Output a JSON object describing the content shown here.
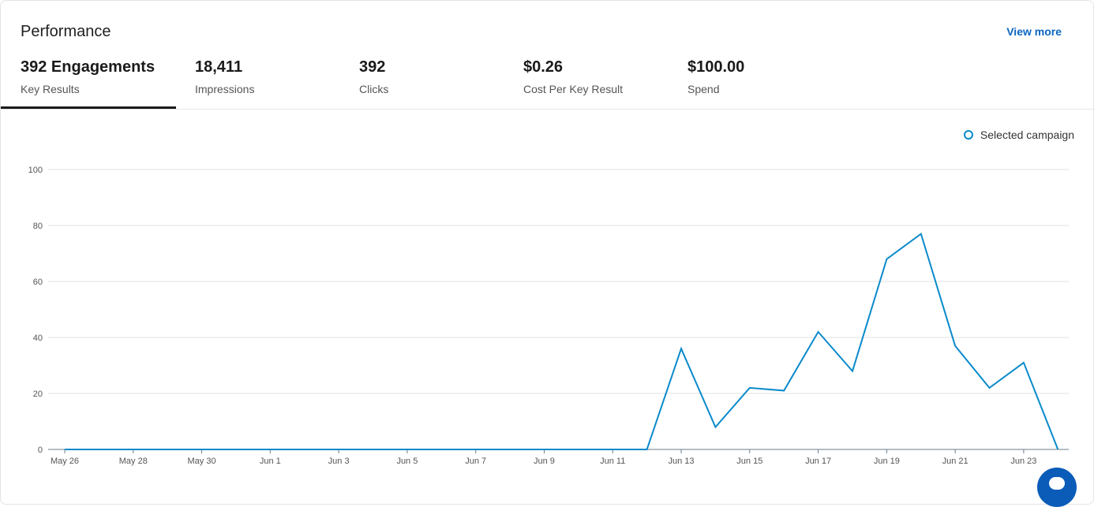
{
  "header": {
    "title": "Performance",
    "view_more": "View more"
  },
  "metrics": [
    {
      "value": "392 Engagements",
      "label": "Key Results",
      "active": true
    },
    {
      "value": "18,411",
      "label": "Impressions"
    },
    {
      "value": "392",
      "label": "Clicks"
    },
    {
      "value": "$0.26",
      "label": "Cost Per Key Result"
    },
    {
      "value": "$100.00",
      "label": "Spend"
    }
  ],
  "chart_data": {
    "type": "line",
    "legend": "Selected campaign",
    "legend_position": "top-right",
    "color": "#0a8acb",
    "grid": true,
    "ylim": [
      0,
      100
    ],
    "y_ticks": [
      "0",
      "20",
      "40",
      "60",
      "80",
      "100"
    ],
    "x_tick_labels": [
      "May 26",
      "May 28",
      "May 30",
      "Jun 1",
      "Jun 3",
      "Jun 5",
      "Jun 7",
      "Jun 9",
      "Jun 11",
      "Jun 13",
      "Jun 15",
      "Jun 17",
      "Jun 19",
      "Jun 21",
      "Jun 23"
    ],
    "x": [
      "May 26",
      "May 27",
      "May 28",
      "May 29",
      "May 30",
      "May 31",
      "Jun 1",
      "Jun 2",
      "Jun 3",
      "Jun 4",
      "Jun 5",
      "Jun 6",
      "Jun 7",
      "Jun 8",
      "Jun 9",
      "Jun 10",
      "Jun 11",
      "Jun 12",
      "Jun 13",
      "Jun 14",
      "Jun 15",
      "Jun 16",
      "Jun 17",
      "Jun 18",
      "Jun 19",
      "Jun 20",
      "Jun 21",
      "Jun 22",
      "Jun 23",
      "Jun 24"
    ],
    "series": [
      {
        "name": "Selected campaign",
        "values": [
          0,
          0,
          0,
          0,
          0,
          0,
          0,
          0,
          0,
          0,
          0,
          0,
          0,
          0,
          0,
          0,
          0,
          0,
          36,
          8,
          22,
          21,
          42,
          28,
          68,
          77,
          37,
          22,
          31,
          0
        ]
      }
    ]
  }
}
